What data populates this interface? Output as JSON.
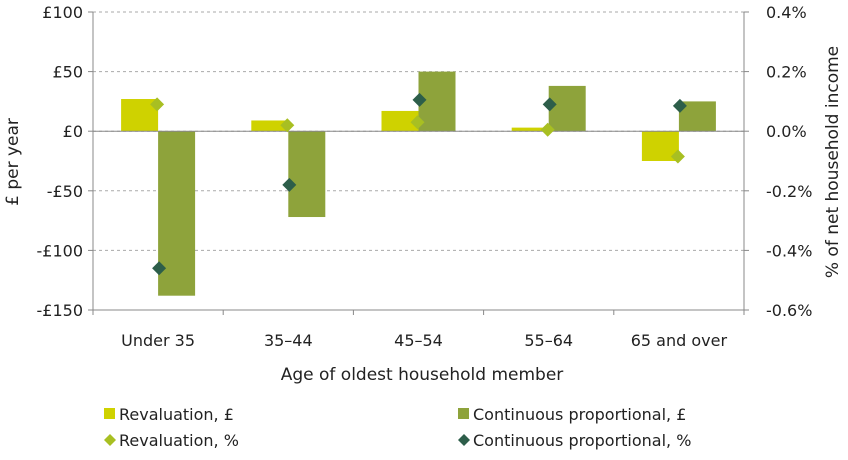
{
  "chart_data": {
    "type": "bar",
    "xlabel": "Age of oldest household member",
    "ylabel": "£ per year",
    "y2label": "% of net household income",
    "categories": [
      "Under 35",
      "35–44",
      "45–54",
      "55–64",
      "65 and over"
    ],
    "ylim": [
      -150,
      100
    ],
    "y2lim": [
      -0.6,
      0.4
    ],
    "yticks": [
      {
        "value": 100,
        "label": "£100"
      },
      {
        "value": 50,
        "label": "£50"
      },
      {
        "value": 0,
        "label": "£0"
      },
      {
        "value": -50,
        "label": "-£50"
      },
      {
        "value": -100,
        "label": "-£100"
      },
      {
        "value": -150,
        "label": "-£150"
      }
    ],
    "y2ticks": [
      {
        "value": 0.4,
        "label": "0.4%"
      },
      {
        "value": 0.2,
        "label": "0.2%"
      },
      {
        "value": 0.0,
        "label": "0.0%"
      },
      {
        "value": -0.2,
        "label": "-0.2%"
      },
      {
        "value": -0.4,
        "label": "-0.4%"
      },
      {
        "value": -0.6,
        "label": "-0.6%"
      }
    ],
    "grid": "horizontal dashed",
    "legend_position": "bottom",
    "series": [
      {
        "name": "Revaluation, £",
        "kind": "bar",
        "axis": "left",
        "color": "#cfd200",
        "values": [
          27,
          9,
          17,
          3,
          -25
        ]
      },
      {
        "name": "Continuous proportional, £",
        "kind": "bar",
        "axis": "left",
        "color": "#8ea33b",
        "values": [
          -138,
          -72,
          50,
          38,
          25
        ]
      },
      {
        "name": "Revaluation, %",
        "kind": "marker",
        "axis": "right",
        "color": "#a8bf22",
        "values": [
          0.09,
          0.02,
          0.03,
          0.005,
          -0.085
        ]
      },
      {
        "name": "Continuous proportional, %",
        "kind": "marker",
        "axis": "right",
        "color": "#2d5e4a",
        "values": [
          -0.46,
          -0.18,
          0.105,
          0.09,
          0.085
        ]
      }
    ]
  }
}
